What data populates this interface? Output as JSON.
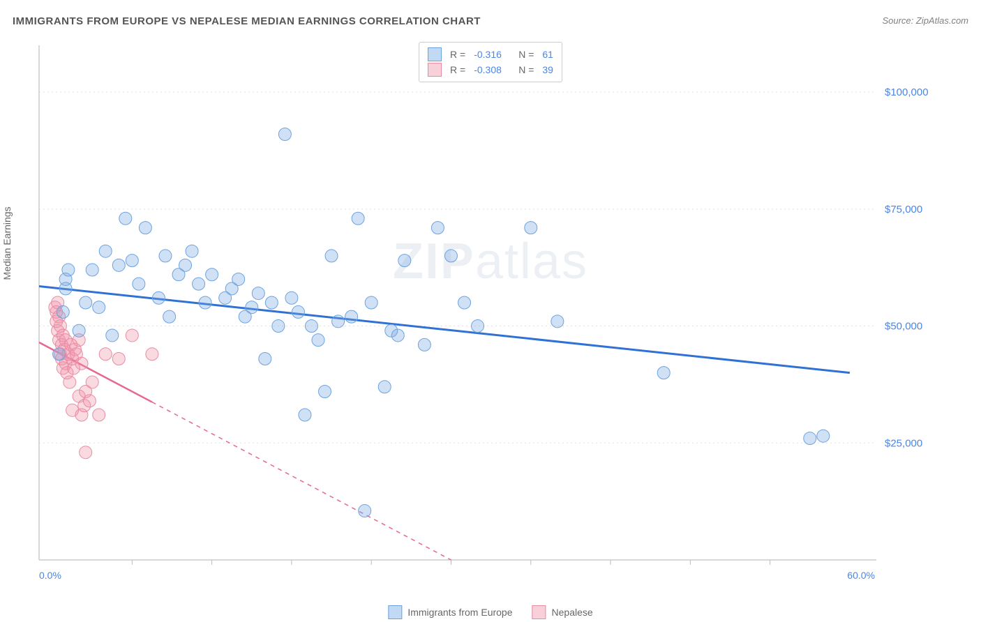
{
  "title": "IMMIGRANTS FROM EUROPE VS NEPALESE MEDIAN EARNINGS CORRELATION CHART",
  "source": "Source: ZipAtlas.com",
  "ylabel": "Median Earnings",
  "watermark_bold": "ZIP",
  "watermark_light": "atlas",
  "chart": {
    "type": "scatter",
    "xlim": [
      -1,
      62
    ],
    "ylim": [
      0,
      110000
    ],
    "x_axis_min_label": "0.0%",
    "x_axis_max_label": "60.0%",
    "y_ticks": [
      25000,
      50000,
      75000,
      100000
    ],
    "y_tick_labels": [
      "$25,000",
      "$50,000",
      "$75,000",
      "$100,000"
    ],
    "x_minor_ticks": [
      6,
      12,
      18,
      24,
      30,
      36,
      42,
      48,
      54
    ],
    "grid_color": "#e0e0e0",
    "axis_color": "#cccccc",
    "tick_color": "#bbbbbb",
    "x_label_color": "#4a86e8",
    "y_label_color": "#4a86e8",
    "background_color": "#ffffff",
    "series": [
      {
        "name": "Immigrants from Europe",
        "color_fill": "rgba(120, 170, 230, 0.35)",
        "color_stroke": "#6ba3e0",
        "trend_color": "#2f72d4",
        "trend_width": 3,
        "trend_solid_extent": 60,
        "marker_radius": 9,
        "R": "-0.316",
        "N": "61",
        "trend": {
          "x1": -1,
          "y1": 58500,
          "x2": 60,
          "y2": 40000
        },
        "points": [
          [
            0.5,
            44000
          ],
          [
            0.8,
            53000
          ],
          [
            1.0,
            58000
          ],
          [
            1.0,
            60000
          ],
          [
            1.2,
            62000
          ],
          [
            2.0,
            49000
          ],
          [
            2.5,
            55000
          ],
          [
            3.0,
            62000
          ],
          [
            3.5,
            54000
          ],
          [
            4.0,
            66000
          ],
          [
            4.5,
            48000
          ],
          [
            5.0,
            63000
          ],
          [
            5.5,
            73000
          ],
          [
            6.0,
            64000
          ],
          [
            6.5,
            59000
          ],
          [
            7.0,
            71000
          ],
          [
            8.0,
            56000
          ],
          [
            8.5,
            65000
          ],
          [
            8.8,
            52000
          ],
          [
            9.5,
            61000
          ],
          [
            10.0,
            63000
          ],
          [
            10.5,
            66000
          ],
          [
            11.0,
            59000
          ],
          [
            11.5,
            55000
          ],
          [
            12.0,
            61000
          ],
          [
            13.0,
            56000
          ],
          [
            13.5,
            58000
          ],
          [
            14.0,
            60000
          ],
          [
            14.5,
            52000
          ],
          [
            15.0,
            54000
          ],
          [
            15.5,
            57000
          ],
          [
            16.0,
            43000
          ],
          [
            16.5,
            55000
          ],
          [
            17.0,
            50000
          ],
          [
            17.5,
            91000
          ],
          [
            18.0,
            56000
          ],
          [
            18.5,
            53000
          ],
          [
            19.0,
            31000
          ],
          [
            19.5,
            50000
          ],
          [
            20.0,
            47000
          ],
          [
            20.5,
            36000
          ],
          [
            21.0,
            65000
          ],
          [
            21.5,
            51000
          ],
          [
            22.5,
            52000
          ],
          [
            23.0,
            73000
          ],
          [
            23.5,
            10500
          ],
          [
            24.0,
            55000
          ],
          [
            25.0,
            37000
          ],
          [
            25.5,
            49000
          ],
          [
            26.0,
            48000
          ],
          [
            26.5,
            64000
          ],
          [
            28.0,
            46000
          ],
          [
            29.0,
            71000
          ],
          [
            30.0,
            65000
          ],
          [
            31.0,
            55000
          ],
          [
            32.0,
            50000
          ],
          [
            36.0,
            71000
          ],
          [
            38.0,
            51000
          ],
          [
            46.0,
            40000
          ],
          [
            57.0,
            26000
          ],
          [
            58.0,
            26500
          ]
        ]
      },
      {
        "name": "Nepalese",
        "color_fill": "rgba(240, 150, 170, 0.35)",
        "color_stroke": "#e88ba3",
        "trend_color": "#e66890",
        "trend_width": 2.5,
        "trend_solid_extent": 7.5,
        "marker_radius": 9,
        "R": "-0.308",
        "N": "39",
        "trend": {
          "x1": -1,
          "y1": 46500,
          "x2": 30,
          "y2": 0
        },
        "points": [
          [
            0.2,
            54000
          ],
          [
            0.3,
            53000
          ],
          [
            0.3,
            51000
          ],
          [
            0.4,
            49000
          ],
          [
            0.4,
            55000
          ],
          [
            0.5,
            47000
          ],
          [
            0.5,
            52000
          ],
          [
            0.6,
            44000
          ],
          [
            0.6,
            50000
          ],
          [
            0.7,
            46000
          ],
          [
            0.7,
            43000
          ],
          [
            0.8,
            48000
          ],
          [
            0.8,
            41000
          ],
          [
            0.9,
            45000
          ],
          [
            1.0,
            42000
          ],
          [
            1.0,
            47000
          ],
          [
            1.1,
            40000
          ],
          [
            1.2,
            44000
          ],
          [
            1.3,
            38000
          ],
          [
            1.4,
            46000
          ],
          [
            1.5,
            43000
          ],
          [
            1.5,
            32000
          ],
          [
            1.6,
            41000
          ],
          [
            1.7,
            45000
          ],
          [
            1.8,
            44000
          ],
          [
            2.0,
            47000
          ],
          [
            2.0,
            35000
          ],
          [
            2.2,
            42000
          ],
          [
            2.2,
            31000
          ],
          [
            2.4,
            33000
          ],
          [
            2.5,
            36000
          ],
          [
            2.5,
            23000
          ],
          [
            2.8,
            34000
          ],
          [
            3.0,
            38000
          ],
          [
            3.5,
            31000
          ],
          [
            4.0,
            44000
          ],
          [
            5.0,
            43000
          ],
          [
            6.0,
            48000
          ],
          [
            7.5,
            44000
          ]
        ]
      }
    ]
  },
  "legend_top": {
    "r_label": "R =",
    "n_label": "N =",
    "r_color": "#4a86e8",
    "n_color": "#4a86e8",
    "text_color": "#666666",
    "swatches": [
      {
        "fill": "rgba(120, 170, 230, 0.45)",
        "stroke": "#6ba3e0"
      },
      {
        "fill": "rgba(240, 150, 170, 0.45)",
        "stroke": "#e88ba3"
      }
    ]
  },
  "legend_bottom": [
    {
      "label": "Immigrants from Europe",
      "fill": "rgba(120, 170, 230, 0.45)",
      "stroke": "#6ba3e0"
    },
    {
      "label": "Nepalese",
      "fill": "rgba(240, 150, 170, 0.45)",
      "stroke": "#e88ba3"
    }
  ]
}
